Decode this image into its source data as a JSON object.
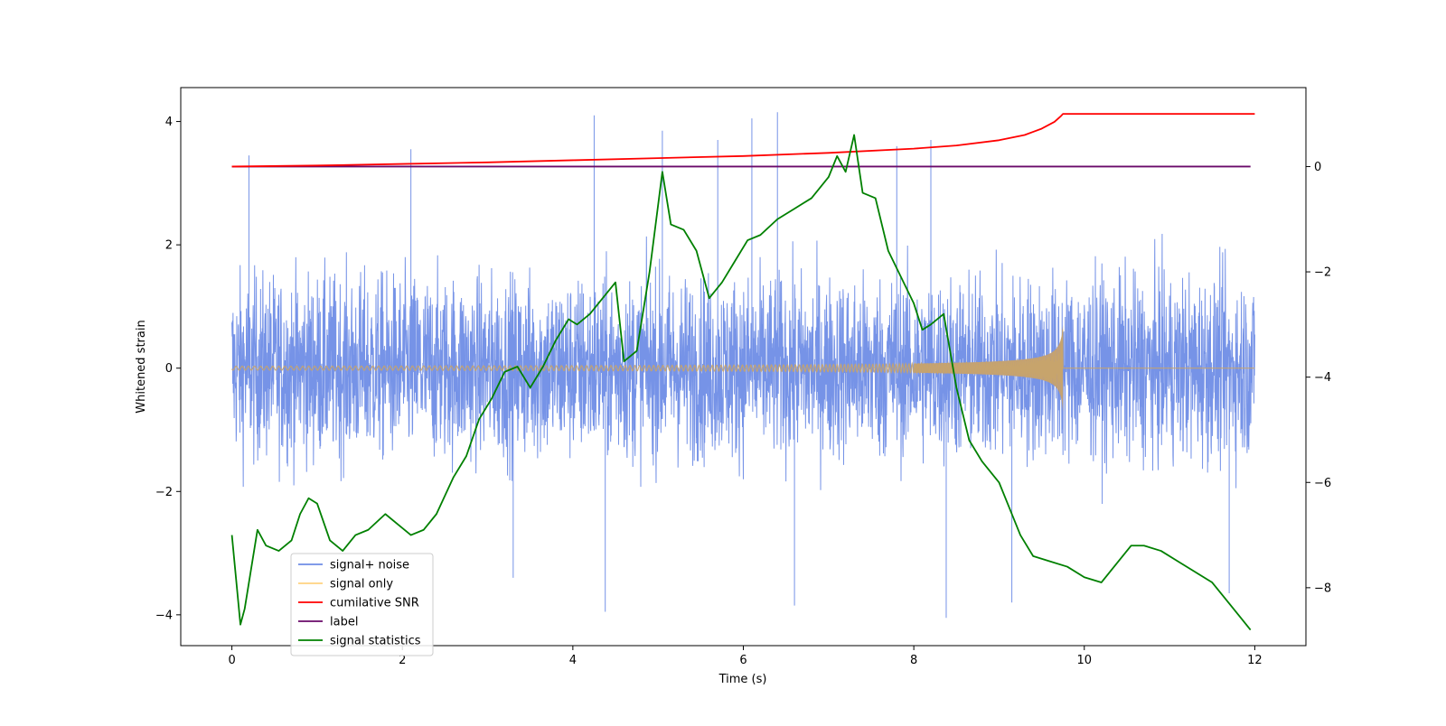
{
  "chart_data": {
    "type": "line",
    "xlabel": "Time (s)",
    "ylabel": "Whitened strain",
    "xlim": [
      -0.6,
      12.6
    ],
    "ylim": [
      -4.5,
      4.55
    ],
    "y2lim": [
      -9.1,
      1.5
    ],
    "x_ticks": [
      0,
      2,
      4,
      6,
      8,
      10,
      12
    ],
    "y_ticks": [
      -4,
      -2,
      0,
      2,
      4
    ],
    "y2_ticks": [
      -8,
      -6,
      -4,
      -2,
      0
    ],
    "grid": false,
    "legend_position": "bottom-left",
    "series": [
      {
        "name": "signal+ noise",
        "axis": "left",
        "color": "#6f8de6",
        "style": "dense noise, amplitude roughly ±2.5 with spikes up to ±4",
        "spikes": [
          [
            0.2,
            3.45
          ],
          [
            2.1,
            3.55
          ],
          [
            4.25,
            4.1
          ],
          [
            5.05,
            3.85
          ],
          [
            5.7,
            3.7
          ],
          [
            6.1,
            4.05
          ],
          [
            6.4,
            4.15
          ],
          [
            7.8,
            3.6
          ],
          [
            8.2,
            3.7
          ],
          [
            4.38,
            -3.95
          ],
          [
            6.6,
            -3.85
          ],
          [
            8.38,
            -4.05
          ],
          [
            9.15,
            -3.8
          ],
          [
            11.7,
            -3.65
          ],
          [
            3.3,
            -3.4
          ]
        ]
      },
      {
        "name": "signal only",
        "axis": "left",
        "color": "#ffc04d",
        "style": "chirp growing in amplitude until merger",
        "merger_time": 9.75,
        "peak_amplitude": 0.7
      },
      {
        "name": "cumilative SNR",
        "axis": "right",
        "color": "#ff0000",
        "x": [
          0,
          1,
          2,
          3,
          4,
          5,
          6,
          7,
          8,
          8.5,
          9,
          9.3,
          9.5,
          9.65,
          9.72,
          9.75,
          12
        ],
        "y": [
          0.0,
          0.02,
          0.05,
          0.08,
          0.12,
          0.16,
          0.2,
          0.26,
          0.34,
          0.4,
          0.5,
          0.6,
          0.72,
          0.85,
          0.95,
          1.0,
          1.0
        ]
      },
      {
        "name": "label",
        "axis": "right",
        "color": "#6a0a6a",
        "x": [
          0,
          11.95
        ],
        "y": [
          0,
          0
        ]
      },
      {
        "name": "signal statistics",
        "axis": "right",
        "color": "#008000",
        "x": [
          0,
          0.1,
          0.15,
          0.3,
          0.4,
          0.55,
          0.7,
          0.8,
          0.9,
          1.0,
          1.15,
          1.3,
          1.45,
          1.6,
          1.8,
          1.95,
          2.1,
          2.25,
          2.4,
          2.6,
          2.75,
          2.9,
          3.05,
          3.2,
          3.35,
          3.5,
          3.65,
          3.8,
          3.95,
          4.05,
          4.2,
          4.35,
          4.5,
          4.6,
          4.75,
          4.9,
          5.05,
          5.15,
          5.3,
          5.45,
          5.6,
          5.75,
          5.9,
          6.05,
          6.2,
          6.4,
          6.6,
          6.8,
          7.0,
          7.1,
          7.2,
          7.3,
          7.4,
          7.55,
          7.7,
          7.85,
          8.0,
          8.1,
          8.2,
          8.35,
          8.5,
          8.65,
          8.8,
          9.0,
          9.1,
          9.25,
          9.4,
          9.6,
          9.8,
          10.0,
          10.2,
          10.4,
          10.55,
          10.7,
          10.9,
          11.1,
          11.3,
          11.5,
          11.7,
          11.85,
          11.95
        ],
        "y": [
          -7.0,
          -8.7,
          -8.4,
          -6.9,
          -7.2,
          -7.3,
          -7.1,
          -6.6,
          -6.3,
          -6.4,
          -7.1,
          -7.3,
          -7.0,
          -6.9,
          -6.6,
          -6.8,
          -7.0,
          -6.9,
          -6.6,
          -5.9,
          -5.5,
          -4.8,
          -4.4,
          -3.9,
          -3.8,
          -4.2,
          -3.8,
          -3.3,
          -2.9,
          -3.0,
          -2.8,
          -2.5,
          -2.2,
          -3.7,
          -3.5,
          -2.0,
          -0.1,
          -1.1,
          -1.2,
          -1.6,
          -2.5,
          -2.2,
          -1.8,
          -1.4,
          -1.3,
          -1.0,
          -0.8,
          -0.6,
          -0.2,
          0.2,
          -0.1,
          0.6,
          -0.5,
          -0.6,
          -1.6,
          -2.1,
          -2.6,
          -3.1,
          -3.0,
          -2.8,
          -4.2,
          -5.2,
          -5.6,
          -6.0,
          -6.4,
          -7.0,
          -7.4,
          -7.5,
          -7.6,
          -7.8,
          -7.9,
          -7.5,
          -7.2,
          -7.2,
          -7.3,
          -7.5,
          -7.7,
          -7.9,
          -8.3,
          -8.6,
          -8.8
        ]
      }
    ]
  }
}
